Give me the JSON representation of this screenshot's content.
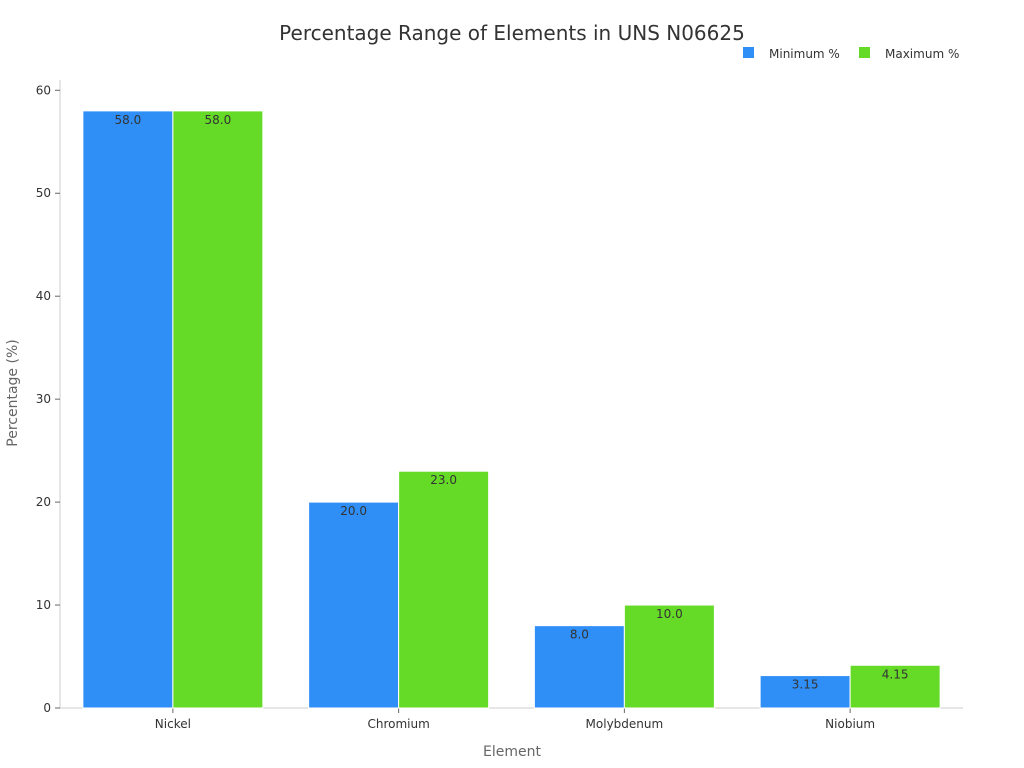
{
  "chart_data": {
    "type": "bar",
    "title": "Percentage Range of Elements in UNS N06625",
    "xlabel": "Element",
    "ylabel": "Percentage (%)",
    "categories": [
      "Nickel",
      "Chromium",
      "Molybdenum",
      "Niobium"
    ],
    "series": [
      {
        "name": "Minimum %",
        "values": [
          58.0,
          20.0,
          8.0,
          3.15
        ],
        "labels": [
          "58.0",
          "20.0",
          "8.0",
          "3.15"
        ],
        "color": "#2f8ff7"
      },
      {
        "name": "Maximum %",
        "values": [
          58.0,
          23.0,
          10.0,
          4.15
        ],
        "labels": [
          "58.0",
          "23.0",
          "10.0",
          "4.15"
        ],
        "color": "#66db27"
      }
    ],
    "ylim": [
      0,
      61
    ],
    "yticks": [
      0,
      10,
      20,
      30,
      40,
      50,
      60
    ],
    "grid": false,
    "legend_position": "top-right"
  }
}
